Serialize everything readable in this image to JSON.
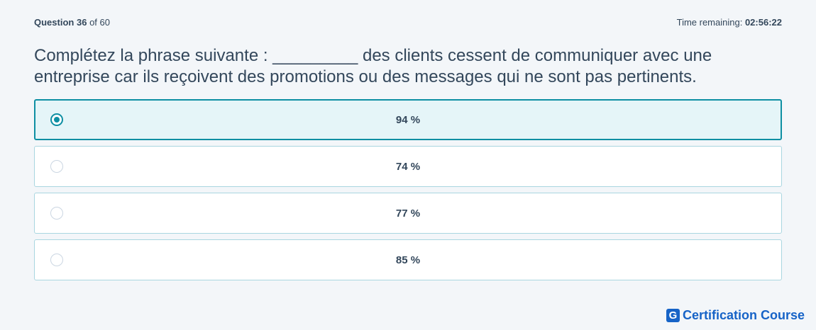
{
  "header": {
    "question_label": "Question",
    "question_number": "36",
    "question_total_text": "of 60",
    "time_label": "Time remaining:",
    "time_value": "02:56:22"
  },
  "question": {
    "text": "Complétez la phrase suivante : _________ des clients cessent de communiquer avec une entreprise car ils reçoivent des promotions ou des messages qui ne sont pas pertinents."
  },
  "options": [
    {
      "label": "94 %",
      "selected": true
    },
    {
      "label": "74 %",
      "selected": false
    },
    {
      "label": "77 %",
      "selected": false
    },
    {
      "label": "85 %",
      "selected": false
    }
  ],
  "brand": {
    "mark": "G",
    "name": "Certification Course",
    "color": "#1663c7"
  },
  "colors": {
    "accent": "#0e8fa3",
    "selected_bg": "#e5f5f8"
  }
}
